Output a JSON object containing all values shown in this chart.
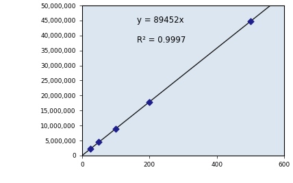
{
  "x_data": [
    25,
    50,
    100,
    200,
    500
  ],
  "y_data": [
    2236300,
    4472600,
    8945200,
    17890400,
    44726000
  ],
  "slope": 89452,
  "r_squared": 0.9997,
  "marker_color": "#1F1F8B",
  "line_color": "#1a1a1a",
  "xlim": [
    0,
    600
  ],
  "ylim": [
    0,
    50000000
  ],
  "xticks": [
    0,
    200,
    400,
    600
  ],
  "yticks": [
    0,
    5000000,
    10000000,
    15000000,
    20000000,
    25000000,
    30000000,
    35000000,
    40000000,
    45000000,
    50000000
  ],
  "annotation_line1": "y = 89452x",
  "annotation_line2": "R² = 0.9997",
  "background_color": "#ffffff",
  "plot_bg_color": "#dce6f1"
}
